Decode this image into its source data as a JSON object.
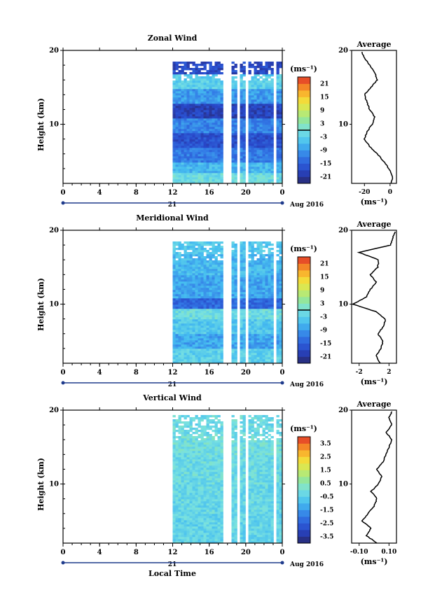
{
  "chart_data": [
    {
      "type": "heatmap",
      "title": "Zonal Wind",
      "ylabel": "Height (km)",
      "xlabel": "",
      "ylim": [
        2,
        20
      ],
      "yticks": [
        "10",
        "20"
      ],
      "xticks": [
        "0",
        "4",
        "8",
        "12",
        "16",
        "20",
        "0"
      ],
      "xlim": [
        0,
        24
      ],
      "date_label": "21",
      "month_label": "Aug 2016",
      "data_start_hour": 12,
      "gap_hours": [
        [
          17.5,
          18.2
        ],
        [
          19.0,
          19.3
        ],
        [
          19.9,
          20.2
        ],
        [
          23.0,
          23.3
        ]
      ],
      "colorbar": {
        "unit": "(ms⁻¹)",
        "ticks": [
          "21",
          "15",
          "9",
          "3",
          "-3",
          "-9",
          "-15",
          "-21"
        ],
        "range": [
          -24,
          24
        ],
        "zero_line": true
      },
      "field": {
        "layers": [
          {
            "y": [
              2,
              3.5
            ],
            "value": -1
          },
          {
            "y": [
              3.5,
              5
            ],
            "value": -6
          },
          {
            "y": [
              5,
              7
            ],
            "value": -12
          },
          {
            "y": [
              7,
              9
            ],
            "value": -17
          },
          {
            "y": [
              9,
              11
            ],
            "value": -11
          },
          {
            "y": [
              11,
              13
            ],
            "value": -19
          },
          {
            "y": [
              13,
              15
            ],
            "value": -9
          },
          {
            "y": [
              15,
              17
            ],
            "value": -3
          },
          {
            "y": [
              17,
              19.5
            ],
            "value": -18
          }
        ],
        "blank_above": 18.5
      },
      "average": {
        "title": "Average",
        "xlabel": "(ms⁻¹)",
        "xticks": [
          "-20",
          "0"
        ],
        "xlim": [
          -30,
          5
        ],
        "profile": [
          [
            2,
            1
          ],
          [
            3,
            2
          ],
          [
            4,
            -1
          ],
          [
            5,
            -5
          ],
          [
            6,
            -10
          ],
          [
            7,
            -16
          ],
          [
            8,
            -20
          ],
          [
            9,
            -18
          ],
          [
            10,
            -14
          ],
          [
            11,
            -12
          ],
          [
            12,
            -16
          ],
          [
            13,
            -18
          ],
          [
            14,
            -20
          ],
          [
            15,
            -15
          ],
          [
            16,
            -10
          ],
          [
            17,
            -12
          ],
          [
            18,
            -16
          ],
          [
            19,
            -20
          ],
          [
            19.8,
            -22
          ]
        ]
      }
    },
    {
      "type": "heatmap",
      "title": "Meridional Wind",
      "ylabel": "Height (km)",
      "xlabel": "",
      "ylim": [
        2,
        20
      ],
      "yticks": [
        "10",
        "20"
      ],
      "xticks": [
        "0",
        "4",
        "8",
        "12",
        "16",
        "20",
        "0"
      ],
      "xlim": [
        0,
        24
      ],
      "date_label": "21",
      "month_label": "Aug 2016",
      "data_start_hour": 12,
      "gap_hours": [
        [
          17.5,
          18.2
        ],
        [
          19.0,
          19.3
        ],
        [
          19.9,
          20.2
        ],
        [
          23.0,
          23.3
        ]
      ],
      "colorbar": {
        "unit": "(ms⁻¹)",
        "ticks": [
          "21",
          "15",
          "9",
          "3",
          "-3",
          "-9",
          "-15",
          "-21"
        ],
        "range": [
          -24,
          24
        ],
        "zero_line": true
      },
      "field": {
        "layers": [
          {
            "y": [
              2,
              4
            ],
            "value": -3
          },
          {
            "y": [
              4,
              6
            ],
            "value": -8
          },
          {
            "y": [
              6,
              8
            ],
            "value": -4
          },
          {
            "y": [
              8,
              9.5
            ],
            "value": -1
          },
          {
            "y": [
              9.5,
              11
            ],
            "value": -14
          },
          {
            "y": [
              11,
              14
            ],
            "value": -8
          },
          {
            "y": [
              14,
              17
            ],
            "value": -6
          },
          {
            "y": [
              17,
              19.5
            ],
            "value": -4
          }
        ],
        "blank_above": 18.5
      },
      "average": {
        "title": "Average",
        "xlabel": "(ms⁻¹)",
        "xticks": [
          "-2",
          "2"
        ],
        "xlim": [
          -3,
          3
        ],
        "profile": [
          [
            2,
            0.8
          ],
          [
            3,
            0.3
          ],
          [
            4,
            0.9
          ],
          [
            5,
            1.2
          ],
          [
            6,
            0.5
          ],
          [
            7,
            1.3
          ],
          [
            8,
            1.5
          ],
          [
            9,
            0.2
          ],
          [
            10,
            -2.8
          ],
          [
            11,
            -1
          ],
          [
            12,
            -0.5
          ],
          [
            13,
            0.3
          ],
          [
            14,
            -0.5
          ],
          [
            15,
            0.5
          ],
          [
            16,
            0.6
          ],
          [
            17,
            -2
          ],
          [
            18,
            2.2
          ],
          [
            19,
            2.5
          ],
          [
            19.8,
            2.8
          ]
        ]
      }
    },
    {
      "type": "heatmap",
      "title": "Vertical Wind",
      "ylabel": "Height (km)",
      "xlabel": "Local Time",
      "ylim": [
        2,
        20
      ],
      "yticks": [
        "10",
        "20"
      ],
      "xticks": [
        "0",
        "4",
        "8",
        "12",
        "16",
        "20",
        "0"
      ],
      "xlim": [
        0,
        24
      ],
      "date_label": "21",
      "month_label": "Aug 2016",
      "data_start_hour": 12,
      "gap_hours": [
        [
          17.5,
          18.2
        ],
        [
          19.0,
          19.3
        ],
        [
          19.9,
          20.2
        ],
        [
          23.0,
          23.3
        ]
      ],
      "colorbar": {
        "unit": "(ms⁻¹)",
        "ticks": [
          "3.5",
          "2.5",
          "1.5",
          "0.5",
          "-0.5",
          "-1.5",
          "-2.5",
          "-3.5"
        ],
        "range": [
          -4,
          4
        ],
        "zero_line": false
      },
      "field": {
        "layers": [
          {
            "y": [
              2,
              6
            ],
            "value": -0.4
          },
          {
            "y": [
              6,
              10
            ],
            "value": -0.3
          },
          {
            "y": [
              10,
              14
            ],
            "value": -0.2
          },
          {
            "y": [
              14,
              17
            ],
            "value": -0.1
          },
          {
            "y": [
              17,
              19.5
            ],
            "value": -0.2
          }
        ],
        "blank_above": 19.8
      },
      "average": {
        "title": "Average",
        "xlabel": "(ms⁻¹)",
        "xticks": [
          "-0.10",
          "0.10"
        ],
        "xlim": [
          -0.15,
          0.15
        ],
        "profile": [
          [
            2,
            0.02
          ],
          [
            3,
            -0.05
          ],
          [
            4,
            -0.02
          ],
          [
            5,
            -0.08
          ],
          [
            6,
            -0.04
          ],
          [
            7,
            0.0
          ],
          [
            8,
            0.02
          ],
          [
            9,
            -0.02
          ],
          [
            10,
            0.03
          ],
          [
            11,
            0.05
          ],
          [
            12,
            0.02
          ],
          [
            13,
            0.06
          ],
          [
            14,
            0.08
          ],
          [
            15,
            0.1
          ],
          [
            16,
            0.12
          ],
          [
            17,
            0.08
          ],
          [
            18,
            0.12
          ],
          [
            19,
            0.1
          ],
          [
            19.8,
            0.12
          ]
        ]
      }
    }
  ]
}
